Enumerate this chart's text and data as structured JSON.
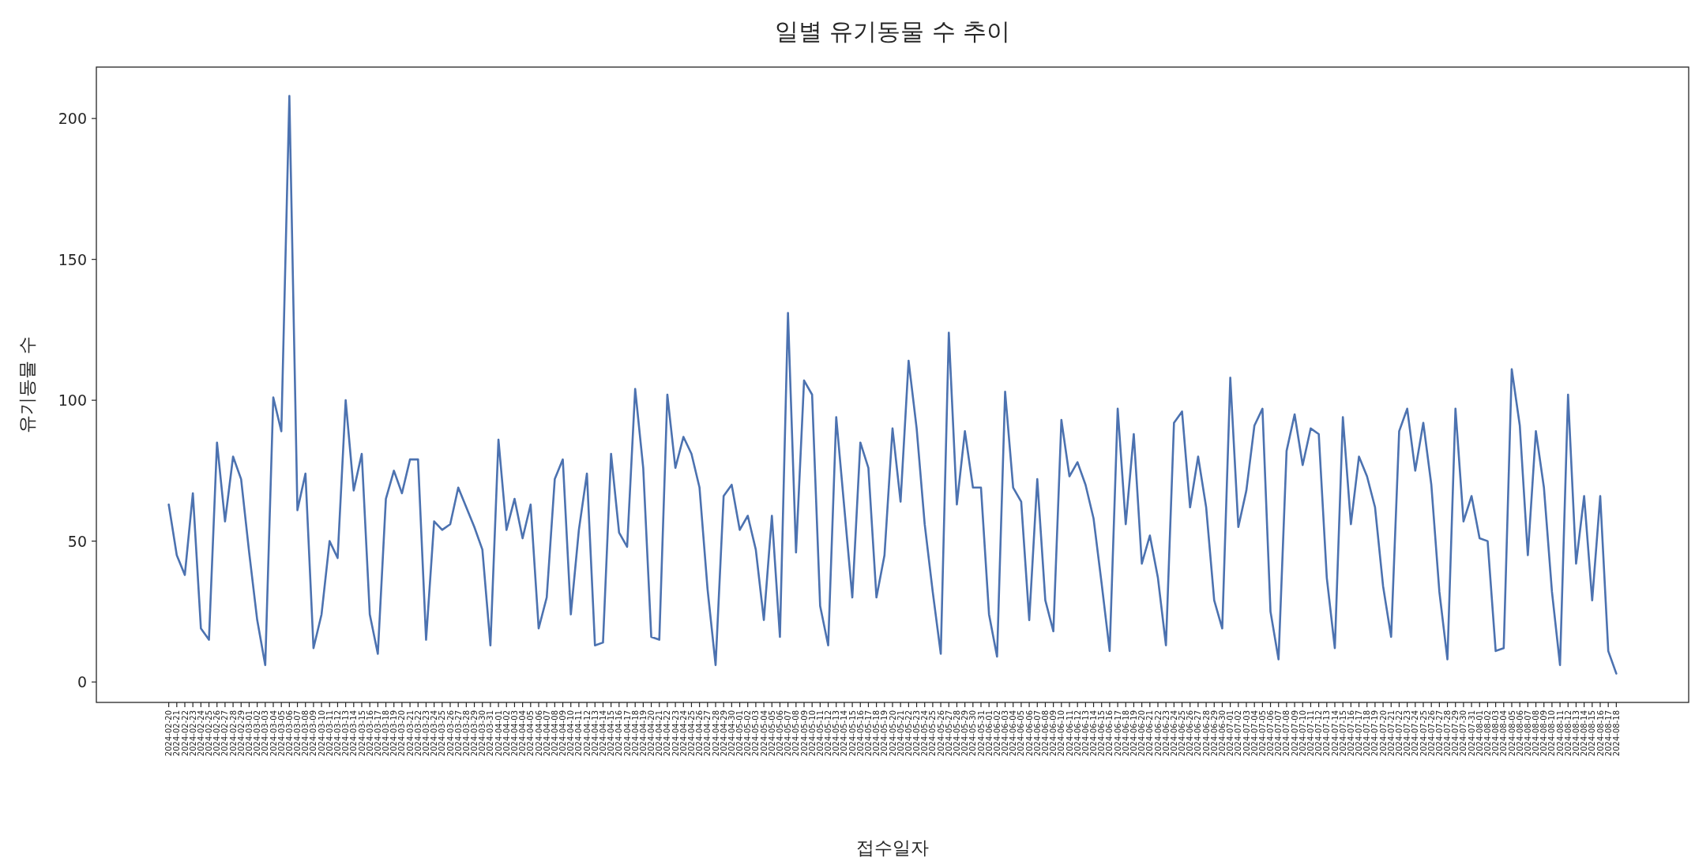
{
  "chart_data": {
    "type": "line",
    "title": "일별 유기동물 수 추이",
    "xlabel": "접수일자",
    "ylabel": "유기동물 수",
    "color": "#4c72b0",
    "categories": [
      "2024-02-20",
      "2024-02-21",
      "2024-02-22",
      "2024-02-23",
      "2024-02-24",
      "2024-02-25",
      "2024-02-26",
      "2024-02-27",
      "2024-02-28",
      "2024-02-29",
      "2024-03-01",
      "2024-03-02",
      "2024-03-03",
      "2024-03-04",
      "2024-03-05",
      "2024-03-06",
      "2024-03-07",
      "2024-03-08",
      "2024-03-09",
      "2024-03-10",
      "2024-03-11",
      "2024-03-12",
      "2024-03-13",
      "2024-03-14",
      "2024-03-15",
      "2024-03-16",
      "2024-03-17",
      "2024-03-18",
      "2024-03-19",
      "2024-03-20",
      "2024-03-21",
      "2024-03-22",
      "2024-03-23",
      "2024-03-24",
      "2024-03-25",
      "2024-03-26",
      "2024-03-27",
      "2024-03-28",
      "2024-03-29",
      "2024-03-30",
      "2024-03-31",
      "2024-04-01",
      "2024-04-02",
      "2024-04-03",
      "2024-04-04",
      "2024-04-05",
      "2024-04-06",
      "2024-04-07",
      "2024-04-08",
      "2024-04-09",
      "2024-04-10",
      "2024-04-11",
      "2024-04-12",
      "2024-04-13",
      "2024-04-14",
      "2024-04-15",
      "2024-04-16",
      "2024-04-17",
      "2024-04-18",
      "2024-04-19",
      "2024-04-20",
      "2024-04-21",
      "2024-04-22",
      "2024-04-23",
      "2024-04-24",
      "2024-04-25",
      "2024-04-26",
      "2024-04-27",
      "2024-04-28",
      "2024-04-29",
      "2024-04-30",
      "2024-05-01",
      "2024-05-02",
      "2024-05-03",
      "2024-05-04",
      "2024-05-05",
      "2024-05-06",
      "2024-05-07",
      "2024-05-08",
      "2024-05-09",
      "2024-05-10",
      "2024-05-11",
      "2024-05-12",
      "2024-05-13",
      "2024-05-14",
      "2024-05-15",
      "2024-05-16",
      "2024-05-17",
      "2024-05-18",
      "2024-05-19",
      "2024-05-20",
      "2024-05-21",
      "2024-05-22",
      "2024-05-23",
      "2024-05-24",
      "2024-05-25",
      "2024-05-26",
      "2024-05-27",
      "2024-05-28",
      "2024-05-29",
      "2024-05-30",
      "2024-05-31",
      "2024-06-01",
      "2024-06-02",
      "2024-06-03",
      "2024-06-04",
      "2024-06-05",
      "2024-06-06",
      "2024-06-07",
      "2024-06-08",
      "2024-06-09",
      "2024-06-10",
      "2024-06-11",
      "2024-06-12",
      "2024-06-13",
      "2024-06-14",
      "2024-06-15",
      "2024-06-16",
      "2024-06-17",
      "2024-06-18",
      "2024-06-19",
      "2024-06-20",
      "2024-06-21",
      "2024-06-22",
      "2024-06-23",
      "2024-06-24",
      "2024-06-25",
      "2024-06-26",
      "2024-06-27",
      "2024-06-28",
      "2024-06-29",
      "2024-06-30",
      "2024-07-01",
      "2024-07-02",
      "2024-07-03",
      "2024-07-04",
      "2024-07-05",
      "2024-07-06",
      "2024-07-07",
      "2024-07-08",
      "2024-07-09",
      "2024-07-10",
      "2024-07-11",
      "2024-07-12",
      "2024-07-13",
      "2024-07-14",
      "2024-07-15",
      "2024-07-16",
      "2024-07-17",
      "2024-07-18",
      "2024-07-19",
      "2024-07-20",
      "2024-07-21",
      "2024-07-22",
      "2024-07-23",
      "2024-07-24",
      "2024-07-25",
      "2024-07-26",
      "2024-07-27",
      "2024-07-28",
      "2024-07-29",
      "2024-07-30",
      "2024-07-31",
      "2024-08-01",
      "2024-08-02",
      "2024-08-03",
      "2024-08-04",
      "2024-08-05",
      "2024-08-06",
      "2024-08-07",
      "2024-08-08",
      "2024-08-09",
      "2024-08-10",
      "2024-08-11",
      "2024-08-12",
      "2024-08-13",
      "2024-08-14",
      "2024-08-15",
      "2024-08-16",
      "2024-08-17",
      "2024-08-18"
    ],
    "values": [
      63,
      45,
      38,
      67,
      19,
      15,
      85,
      57,
      80,
      72,
      46,
      22,
      6,
      101,
      89,
      208,
      61,
      74,
      12,
      24,
      50,
      44,
      100,
      68,
      81,
      24,
      10,
      65,
      75,
      67,
      79,
      79,
      15,
      57,
      54,
      56,
      69,
      62,
      55,
      47,
      13,
      86,
      54,
      65,
      51,
      63,
      19,
      30,
      72,
      79,
      24,
      54,
      74,
      13,
      14,
      81,
      53,
      48,
      104,
      76,
      16,
      15,
      102,
      76,
      87,
      81,
      69,
      33,
      6,
      66,
      70,
      54,
      59,
      47,
      22,
      59,
      16,
      131,
      46,
      107,
      102,
      27,
      13,
      94,
      62,
      30,
      85,
      76,
      30,
      45,
      90,
      64,
      114,
      90,
      56,
      32,
      10,
      124,
      63,
      89,
      69,
      69,
      24,
      9,
      103,
      69,
      64,
      22,
      72,
      29,
      18,
      93,
      73,
      78,
      70,
      58,
      35,
      11,
      97,
      56,
      88,
      42,
      52,
      37,
      13,
      92,
      96,
      62,
      80,
      62,
      29,
      19,
      108,
      55,
      68,
      91,
      97,
      25,
      8,
      82,
      95,
      77,
      90,
      88,
      37,
      12,
      94,
      56,
      80,
      73,
      62,
      34,
      16,
      89,
      97,
      75,
      92,
      70,
      32,
      8,
      97,
      57,
      66,
      51,
      50,
      11,
      12,
      111,
      91,
      45,
      89,
      69,
      32,
      6,
      102,
      42,
      66,
      29,
      66,
      11,
      3
    ],
    "ylim": [
      -7.25,
      218.25
    ],
    "yticks": [
      0,
      50,
      100,
      150,
      200
    ]
  }
}
